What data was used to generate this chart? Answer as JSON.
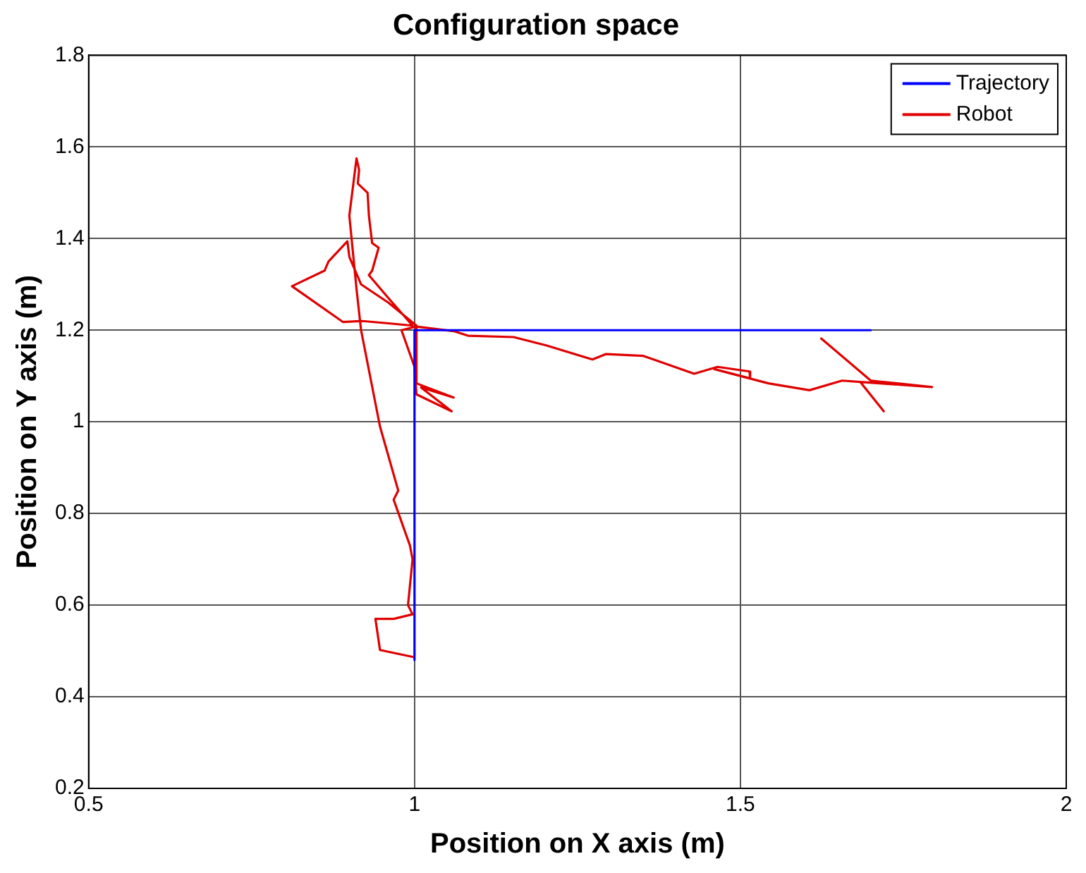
{
  "chart_data": {
    "type": "line",
    "title": "Configuration space",
    "xlabel": "Position on X axis (m)",
    "ylabel": "Position on Y axis (m)",
    "xlim": [
      0.5,
      2
    ],
    "ylim": [
      0.2,
      1.8
    ],
    "xticks": [
      0.5,
      1,
      1.5,
      2
    ],
    "yticks": [
      0.2,
      0.4,
      0.6,
      0.8,
      1,
      1.2,
      1.4,
      1.6,
      1.8
    ],
    "grid": true,
    "legend": "top right",
    "marker": "none",
    "line_style": "solid",
    "series": [
      {
        "name": "Trajectory",
        "color": "#0000ff",
        "x": [
          1,
          1,
          1.7
        ],
        "values": [
          0.48,
          1.2,
          1.2
        ]
      },
      {
        "name": "Robot",
        "color": "#e00000",
        "x": [
          0.997,
          0.947,
          0.94,
          0.968,
          0.997,
          0.99,
          0.997,
          0.993,
          0.968,
          0.975,
          0.947,
          0.918,
          0.911,
          0.9,
          0.911,
          0.915,
          0.913,
          0.928,
          0.93,
          0.935,
          0.945,
          0.935,
          0.93,
          0.96,
          0.997,
          0.96,
          0.92,
          0.89,
          0.812,
          0.862,
          0.868,
          0.897,
          0.9,
          0.918,
          0.96,
          1.003,
          1.003,
          1.06,
          1.01,
          1.057,
          1.003,
          1.0,
          0.98,
          1.003,
          1.06,
          1.082,
          1.152,
          1.202,
          1.273,
          1.294,
          1.351,
          1.429,
          1.465,
          1.514,
          1.515,
          1.46,
          1.543,
          1.606,
          1.656,
          1.684,
          1.72,
          1.684,
          1.794,
          1.7,
          1.624
        ],
        "values": [
          0.487,
          0.502,
          0.57,
          0.57,
          0.58,
          0.6,
          0.7,
          0.73,
          0.83,
          0.85,
          0.99,
          1.2,
          1.29,
          1.45,
          1.575,
          1.55,
          1.52,
          1.5,
          1.45,
          1.39,
          1.38,
          1.33,
          1.32,
          1.27,
          1.21,
          1.215,
          1.22,
          1.218,
          1.296,
          1.33,
          1.35,
          1.394,
          1.36,
          1.3,
          1.26,
          1.21,
          1.084,
          1.053,
          1.075,
          1.023,
          1.06,
          1.12,
          1.2,
          1.208,
          1.198,
          1.188,
          1.185,
          1.167,
          1.136,
          1.148,
          1.144,
          1.105,
          1.12,
          1.11,
          1.095,
          1.115,
          1.084,
          1.069,
          1.09,
          1.087,
          1.023,
          1.087,
          1.076,
          1.09,
          1.182
        ]
      }
    ]
  }
}
